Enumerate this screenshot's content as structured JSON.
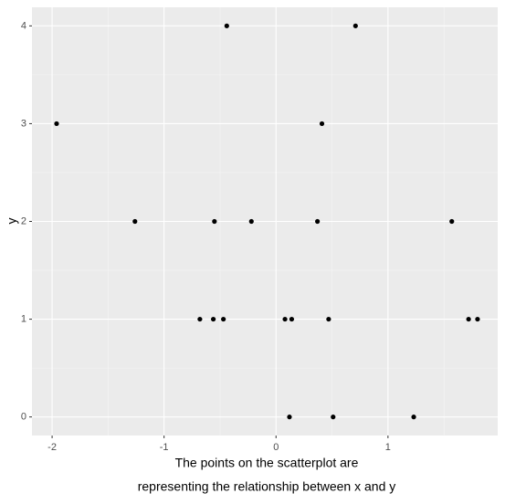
{
  "chart_data": {
    "type": "scatter",
    "y_label": "y",
    "caption": [
      "The points on the scatterplot are",
      "representing the relationship between x and y"
    ],
    "x": [
      -1.96,
      -1.26,
      -0.44,
      0.71,
      0.41,
      -0.55,
      -0.22,
      0.37,
      1.57,
      -0.68,
      -0.56,
      -0.47,
      0.08,
      0.14,
      0.47,
      1.72,
      1.8,
      0.12,
      0.51,
      1.23
    ],
    "y": [
      3,
      2,
      4,
      4,
      3,
      2,
      2,
      2,
      2,
      1,
      1,
      1,
      1,
      1,
      1,
      1,
      1,
      0,
      0,
      0
    ],
    "color": "#000000",
    "xlim": [
      -2.18,
      1.98
    ],
    "ylim": [
      -0.19,
      4.19
    ],
    "xticks": [
      -2,
      -1,
      0,
      1
    ],
    "yticks": [
      0,
      1,
      2,
      3,
      4
    ],
    "grid": true
  }
}
